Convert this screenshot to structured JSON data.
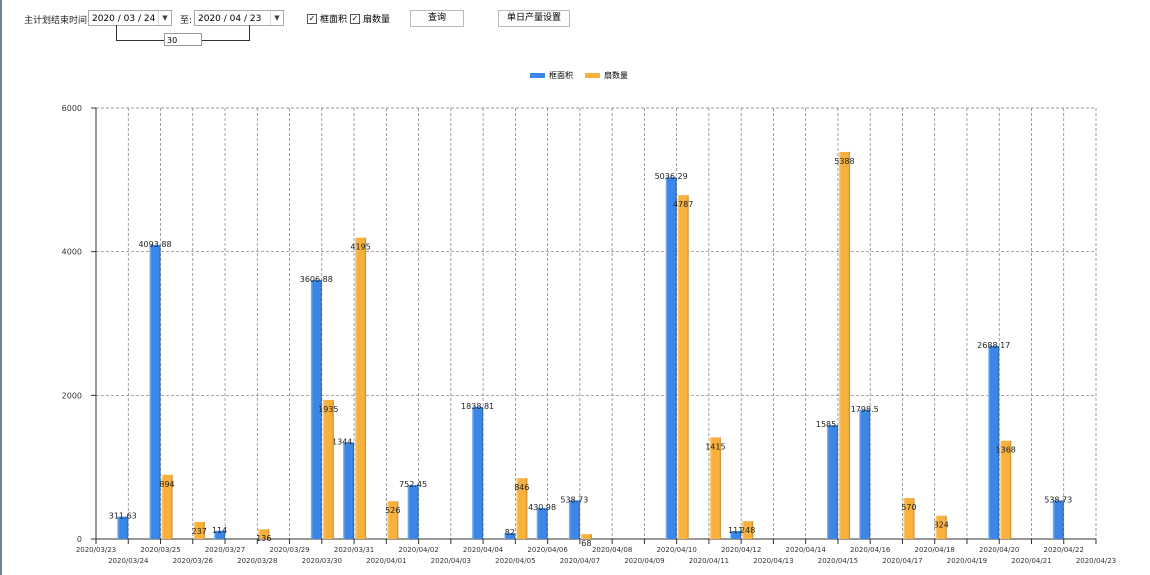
{
  "toolbar": {
    "date_label": "主计划结束时间:",
    "start_date": "2020 / 03 / 24",
    "to_label": "至:",
    "end_date": "2020 / 04 / 23",
    "days": "30",
    "check1": {
      "label": "框面积",
      "checked": true
    },
    "check2": {
      "label": "扇数量",
      "checked": true
    },
    "query_label": "查询",
    "settings_label": "单日产量设置"
  },
  "chart_data": {
    "type": "bar",
    "grid": true,
    "legend_position": "top-center",
    "ylim": [
      0,
      6000
    ],
    "yticks": [
      "0",
      "2000",
      "4000",
      "6000"
    ],
    "categories": [
      "2020/03/23",
      "2020/03/24",
      "2020/03/25",
      "2020/03/26",
      "2020/03/27",
      "2020/03/28",
      "2020/03/29",
      "2020/03/30",
      "2020/03/31",
      "2020/04/01",
      "2020/04/02",
      "2020/04/03",
      "2020/04/04",
      "2020/04/05",
      "2020/04/06",
      "2020/04/07",
      "2020/04/08",
      "2020/04/09",
      "2020/04/10",
      "2020/04/11",
      "2020/04/12",
      "2020/04/13",
      "2020/04/14",
      "2020/04/15",
      "2020/04/16",
      "2020/04/17",
      "2020/04/18",
      "2020/04/19",
      "2020/04/20",
      "2020/04/21",
      "2020/04/22",
      "2020/04/23"
    ],
    "series": [
      {
        "name": "框面积",
        "color": "#3b86e6",
        "values": [
          null,
          311.63,
          4093.88,
          null,
          114,
          null,
          null,
          3606.88,
          1344.95,
          null,
          752.45,
          null,
          1838.81,
          82,
          430.98,
          538.73,
          null,
          null,
          5036.29,
          null,
          111,
          null,
          null,
          1585.96,
          1798.5,
          null,
          null,
          null,
          2688.17,
          null,
          538.73,
          null
        ]
      },
      {
        "name": "扇数量",
        "color": "#f7b13c",
        "values": [
          null,
          null,
          894,
          237,
          null,
          136,
          null,
          1935,
          4195,
          526,
          null,
          null,
          null,
          846,
          null,
          68,
          null,
          null,
          4787,
          1415,
          248,
          null,
          null,
          5388,
          null,
          570,
          324,
          null,
          1368,
          null,
          null,
          null
        ]
      }
    ]
  }
}
